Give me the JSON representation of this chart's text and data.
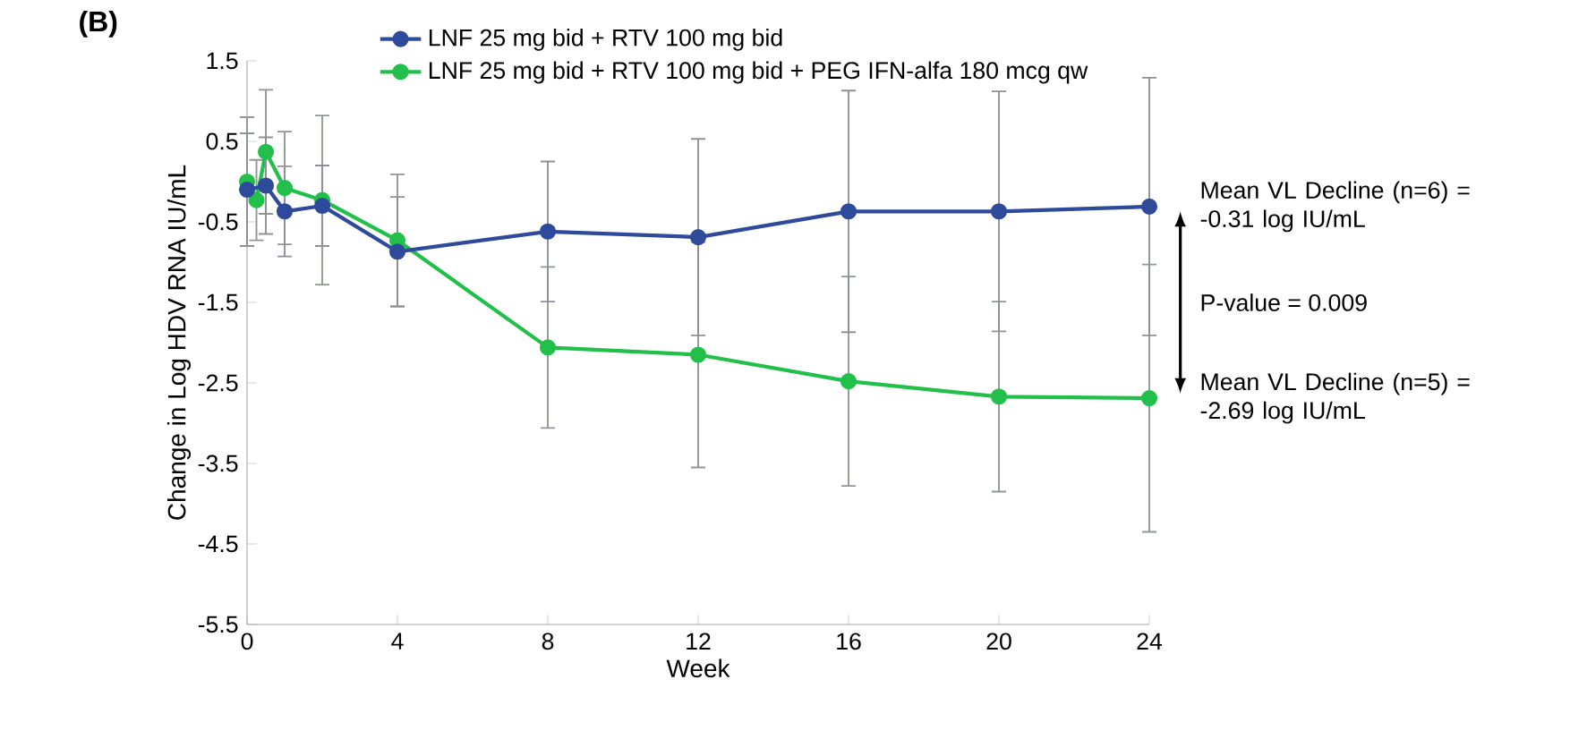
{
  "chart_data": {
    "type": "line",
    "title": "(B)",
    "xlabel": "Week",
    "ylabel": "Change in Log HDV RNA IU/mL",
    "xlim": [
      0,
      24
    ],
    "xticks": [
      0,
      4,
      8,
      12,
      16,
      20,
      24
    ],
    "ylim": [
      -5.5,
      1.5
    ],
    "yticks": [
      1.5,
      0.5,
      -0.5,
      -1.5,
      -2.5,
      -3.5,
      -4.5,
      -5.5
    ],
    "series": [
      {
        "name": "LNF 25 mg bid + RTV 100 mg bid",
        "color": "#2e4a9a",
        "x": [
          0,
          0.5,
          1,
          2,
          4,
          8,
          12,
          16,
          20,
          24
        ],
        "values": [
          -0.1,
          -0.05,
          -0.37,
          -0.3,
          -0.87,
          -0.62,
          -0.69,
          -0.37,
          -0.37,
          -0.31
        ],
        "errors": [
          0.7,
          0.6,
          0.56,
          0.5,
          0.68,
          0.87,
          1.22,
          1.5,
          1.49,
          1.6
        ]
      },
      {
        "name": "LNF 25 mg bid + RTV 100 mg bid + PEG IFN-alfa 180 mcg qw",
        "color": "#22c04a",
        "x": [
          0,
          0.25,
          0.5,
          1,
          2,
          4,
          8,
          12,
          16,
          20,
          24
        ],
        "values": [
          0.0,
          -0.23,
          0.37,
          -0.08,
          -0.23,
          -0.73,
          -2.06,
          -2.15,
          -2.48,
          -2.67,
          -2.69
        ],
        "errors": [
          0.8,
          0.5,
          0.77,
          0.7,
          1.05,
          0.82,
          1.0,
          1.4,
          1.3,
          1.18,
          1.66
        ]
      }
    ],
    "annotations": [
      {
        "text": "Mean VL Decline (n=6) = -0.31 log IU/mL",
        "x": 24,
        "y": -0.31
      },
      "P-value = 0.009",
      {
        "text": "Mean VL Decline (n=5) = -2.69 log IU/mL",
        "x": 24,
        "y": -2.69
      }
    ],
    "legend": "top",
    "marker": "circle",
    "line_style": "solid",
    "grid": false
  }
}
